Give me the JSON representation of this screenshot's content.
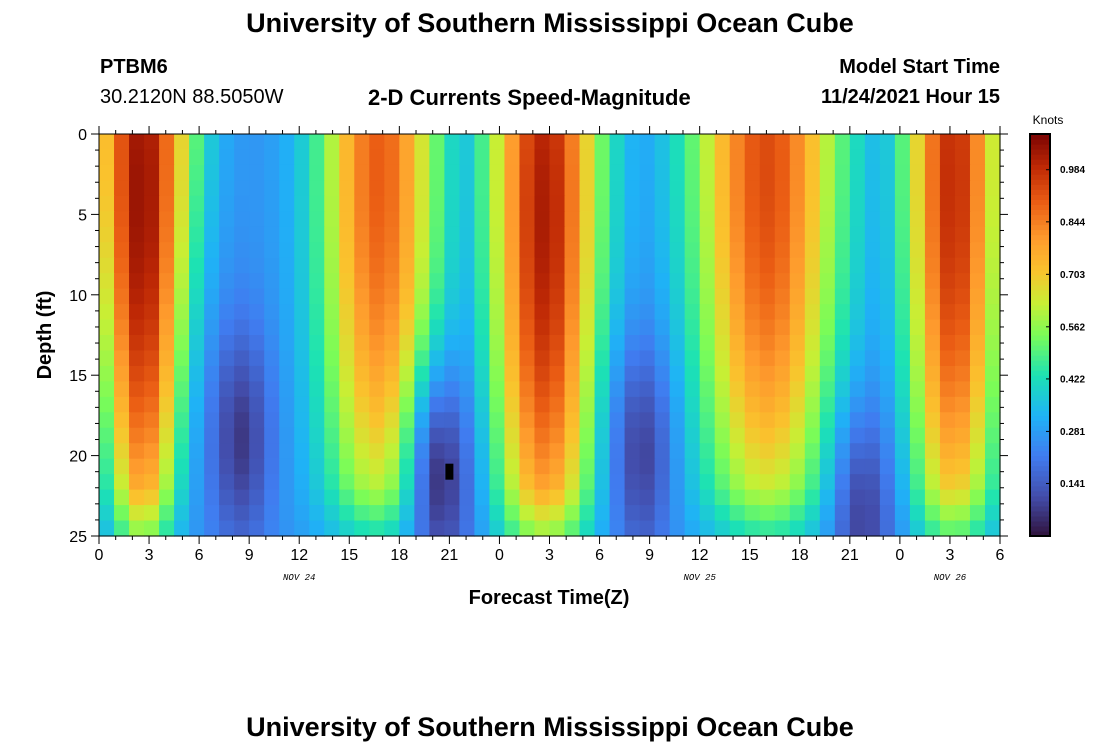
{
  "page": {
    "title": "University of Southern Mississippi Ocean Cube",
    "bottom_title": "University of Southern Mississippi Ocean Cube",
    "station_id": "PTBM6",
    "coordinates": "30.2120N  88.5050W",
    "subtitle": "2-D Currents Speed-Magnitude",
    "model_start_label": "Model Start Time",
    "model_start_value": "11/24/2021 Hour 15"
  },
  "chart_data": {
    "type": "heatmap",
    "title": "2-D Currents Speed-Magnitude",
    "xlabel": "Forecast Time(Z)",
    "ylabel": "Depth (ft)",
    "x_tick_labels": [
      "0",
      "3",
      "6",
      "9",
      "12",
      "15",
      "18",
      "21",
      "0",
      "3",
      "6",
      "9",
      "12",
      "15",
      "18",
      "21",
      "0",
      "3",
      "6"
    ],
    "x_range_hours": [
      0,
      54
    ],
    "y_tick_labels": [
      "0",
      "5",
      "10",
      "15",
      "20",
      "25"
    ],
    "ylim": [
      0,
      25
    ],
    "y_inverted": true,
    "date_labels": [
      {
        "text": "NOV 24",
        "hour": 12
      },
      {
        "text": "NOV 25",
        "hour": 36
      },
      {
        "text": "NOV 26",
        "hour": 51
      }
    ],
    "colorbar": {
      "label": "Knots",
      "min": 0.0,
      "max": 1.08,
      "ticks": [
        "0.984",
        "0.844",
        "0.703",
        "0.562",
        "0.422",
        "0.281",
        "0.141"
      ]
    },
    "grid_columns": 60,
    "grid_rows": 26,
    "peaks": [
      {
        "center_hour": 2.6,
        "peak_depth_ft": 4.0,
        "max_speed": 1.05,
        "half_width_top_h": 3.0,
        "half_width_bottom_h": 2.0
      },
      {
        "center_hour": 16.8,
        "peak_depth_ft": 2.0,
        "max_speed": 0.9,
        "half_width_top_h": 3.6,
        "half_width_bottom_h": 3.5
      },
      {
        "center_hour": 26.7,
        "peak_depth_ft": 5.0,
        "max_speed": 1.02,
        "half_width_top_h": 3.4,
        "half_width_bottom_h": 3.0
      },
      {
        "center_hour": 40.0,
        "peak_depth_ft": 2.0,
        "max_speed": 0.93,
        "half_width_top_h": 4.5,
        "half_width_bottom_h": 4.0
      },
      {
        "center_hour": 51.2,
        "peak_depth_ft": 3.0,
        "max_speed": 0.99,
        "half_width_top_h": 2.9,
        "half_width_bottom_h": 2.6
      }
    ],
    "lows": [
      {
        "center_hour": 8.5,
        "center_depth_ft": 19.0,
        "min_speed": 0.05
      },
      {
        "center_hour": 20.5,
        "center_depth_ft": 21.5,
        "min_speed": 0.03
      },
      {
        "center_hour": 32.5,
        "center_depth_ft": 20.0,
        "min_speed": 0.07
      },
      {
        "center_hour": 45.8,
        "center_depth_ft": 24.0,
        "min_speed": 0.07
      }
    ],
    "flagged_cell": {
      "hour": 21,
      "depth_ft": 21
    }
  }
}
